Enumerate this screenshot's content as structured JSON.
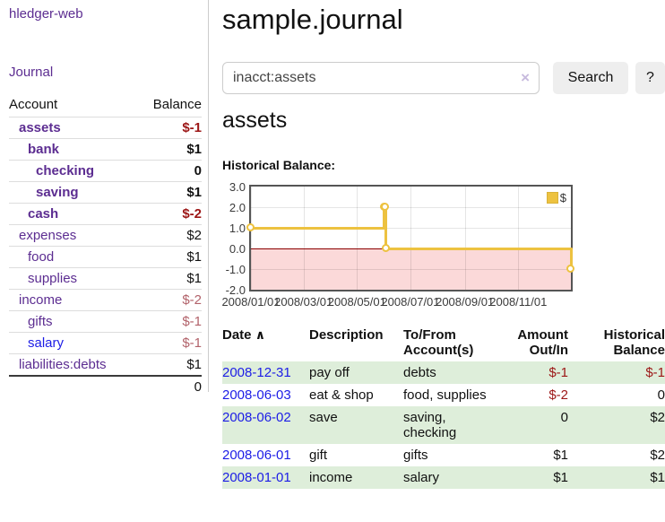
{
  "app": {
    "brand": "hledger-web",
    "nav_journal": "Journal"
  },
  "colors": {
    "accent_purple": "#5c2d91",
    "link_blue": "#1c1ce6",
    "negative_strong": "#9c1616",
    "negative_soft": "#b2626a",
    "row_shade_green": "#deeeda",
    "chart_line_gold": "#edc240",
    "chart_negative_fill": "#fbd9d9",
    "chart_zero_line": "#8b0000"
  },
  "sidebar": {
    "headers": {
      "account": "Account",
      "balance": "Balance"
    },
    "rows": [
      {
        "account": "assets",
        "balance": "$-1",
        "level": 1,
        "bold": true,
        "neg": "strong"
      },
      {
        "account": "bank",
        "balance": "$1",
        "level": 2,
        "bold": true,
        "neg": "none"
      },
      {
        "account": "checking",
        "balance": "0",
        "level": 3,
        "bold": true,
        "neg": "none"
      },
      {
        "account": "saving",
        "balance": "$1",
        "level": 3,
        "bold": true,
        "neg": "none"
      },
      {
        "account": "cash",
        "balance": "$-2",
        "level": 2,
        "bold": true,
        "neg": "strong"
      },
      {
        "account": "expenses",
        "balance": "$2",
        "level": 1,
        "bold": false,
        "neg": "none"
      },
      {
        "account": "food",
        "balance": "$1",
        "level": 2,
        "bold": false,
        "neg": "none"
      },
      {
        "account": "supplies",
        "balance": "$1",
        "level": 2,
        "bold": false,
        "neg": "none"
      },
      {
        "account": "income",
        "balance": "$-2",
        "level": 1,
        "bold": false,
        "neg": "soft"
      },
      {
        "account": "gifts",
        "balance": "$-1",
        "level": 2,
        "bold": false,
        "neg": "soft"
      },
      {
        "account": "salary",
        "balance": "$-1",
        "level": 2,
        "bold": false,
        "neg": "soft",
        "link": "blue"
      },
      {
        "account": "liabilities:debts",
        "balance": "$1",
        "level": 1,
        "bold": false,
        "neg": "none"
      }
    ],
    "total": "0"
  },
  "header": {
    "title": "sample.journal"
  },
  "search": {
    "value": "inacct:assets",
    "clear_icon": "×",
    "button_label": "Search",
    "help_label": "?"
  },
  "account_page": {
    "title": "assets",
    "chart_label": "Historical Balance:"
  },
  "chart_data": {
    "type": "line",
    "step": true,
    "title": "Historical Balance:",
    "series": [
      {
        "name": "$",
        "color": "#edc240",
        "points": [
          [
            "2008-01-01",
            1
          ],
          [
            "2008-06-01",
            2
          ],
          [
            "2008-06-02",
            2
          ],
          [
            "2008-06-03",
            0
          ],
          [
            "2008-12-31",
            -1
          ]
        ]
      }
    ],
    "ylim": [
      -2,
      3
    ],
    "yticks": [
      3.0,
      2.0,
      1.0,
      0.0,
      -1.0,
      -2.0
    ],
    "ytick_labels": [
      "3.0",
      "2.0",
      "1.0",
      "0.0",
      "-1.0",
      "-2.0"
    ],
    "xtick_labels": [
      "2008/01/01",
      "2008/03/01",
      "2008/05/01",
      "2008/07/01",
      "2008/09/01",
      "2008/11/01"
    ],
    "xtick_days": [
      0,
      60,
      121,
      182,
      244,
      305
    ],
    "x_span_days": 365,
    "grid": true,
    "legend_position": "top-right",
    "negative_region_shaded": true
  },
  "register": {
    "headers": {
      "date": "Date",
      "sort_icon": "∧",
      "description": "Description",
      "accounts": "To/From Account(s)",
      "amount": "Amount Out/In",
      "balance": "Historical Balance"
    },
    "rows": [
      {
        "date": "2008-12-31",
        "description": "pay off",
        "accounts": "debts",
        "amount": "$-1",
        "balance": "$-1",
        "amount_neg": true,
        "balance_neg": true,
        "shade": true
      },
      {
        "date": "2008-06-03",
        "description": "eat & shop",
        "accounts": "food, supplies",
        "amount": "$-2",
        "balance": "0",
        "amount_neg": true,
        "balance_neg": false,
        "shade": false
      },
      {
        "date": "2008-06-02",
        "description": "save",
        "accounts": "saving, checking",
        "amount": "0",
        "balance": "$2",
        "amount_neg": false,
        "balance_neg": false,
        "shade": true
      },
      {
        "date": "2008-06-01",
        "description": "gift",
        "accounts": "gifts",
        "amount": "$1",
        "balance": "$2",
        "amount_neg": false,
        "balance_neg": false,
        "shade": false
      },
      {
        "date": "2008-01-01",
        "description": "income",
        "accounts": "salary",
        "amount": "$1",
        "balance": "$1",
        "amount_neg": false,
        "balance_neg": false,
        "shade": true
      }
    ]
  }
}
